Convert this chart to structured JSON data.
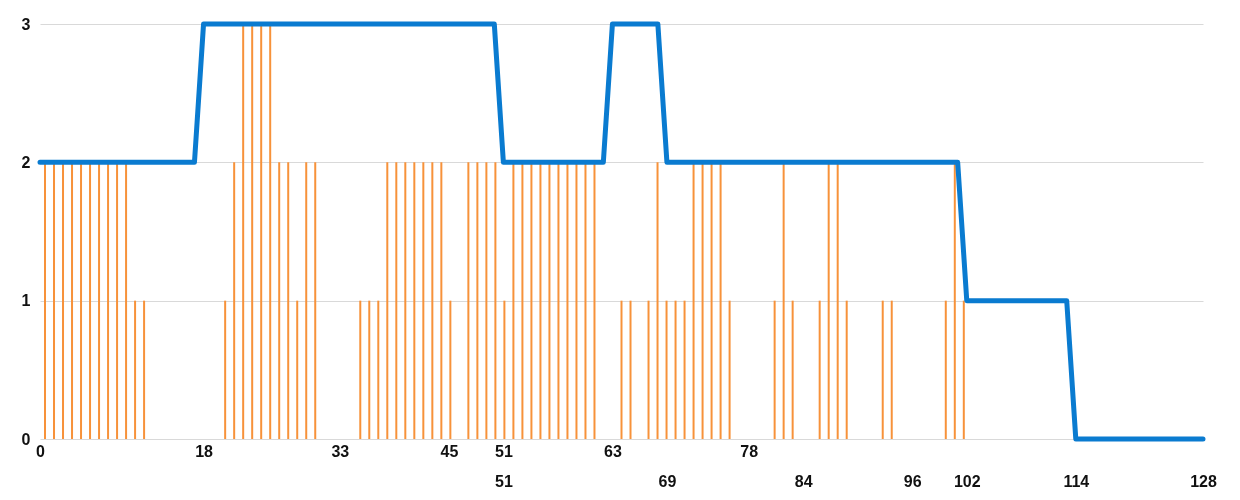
{
  "chart_data": {
    "type": "bar",
    "xlim": [
      0,
      128
    ],
    "xticks": [
      0,
      18,
      33,
      45,
      51,
      63,
      78
    ],
    "x2lim": [
      0,
      128
    ],
    "x2ticks": [
      51,
      69,
      84,
      96,
      102,
      114,
      128
    ],
    "ylim": [
      0,
      3
    ],
    "yticks": [
      0,
      1,
      2,
      3
    ],
    "grid": "y",
    "series": [
      {
        "color": "#f7923a",
        "x": [
          0,
          1,
          2,
          3,
          4,
          5,
          6,
          7,
          8,
          9,
          10,
          11,
          20,
          21,
          22,
          23,
          24,
          25,
          26,
          27,
          28,
          29,
          30,
          35,
          36,
          37,
          38,
          39,
          40,
          41,
          42,
          43,
          44,
          45,
          47,
          48,
          49,
          50,
          51,
          52,
          53,
          54,
          55,
          56,
          57,
          58,
          59,
          60,
          61,
          64,
          65,
          67,
          68,
          69,
          70,
          71,
          72,
          73,
          74,
          75,
          76,
          81,
          82,
          83,
          86,
          87,
          88,
          89,
          93,
          94,
          100,
          101,
          102
        ],
        "values": [
          2,
          2,
          2,
          2,
          2,
          2,
          2,
          2,
          2,
          2,
          1,
          1,
          1,
          2,
          3,
          3,
          3,
          3,
          2,
          2,
          1,
          2,
          2,
          1,
          1,
          1,
          2,
          2,
          2,
          2,
          2,
          2,
          2,
          1,
          2,
          2,
          2,
          2,
          1,
          2,
          2,
          2,
          2,
          2,
          2,
          2,
          2,
          2,
          2,
          1,
          1,
          1,
          2,
          1,
          1,
          1,
          2,
          2,
          2,
          2,
          1,
          1,
          2,
          1,
          1,
          2,
          2,
          1,
          1,
          1,
          1,
          2,
          1
        ]
      },
      {
        "type": "line",
        "color": "#0a7bd0",
        "x": [
          0,
          17,
          18,
          50,
          51,
          62,
          63,
          68,
          69,
          101,
          102,
          113,
          114,
          128
        ],
        "values": [
          2,
          2,
          3,
          3,
          2,
          2,
          3,
          3,
          2,
          2,
          1,
          1,
          0,
          0
        ]
      }
    ]
  }
}
